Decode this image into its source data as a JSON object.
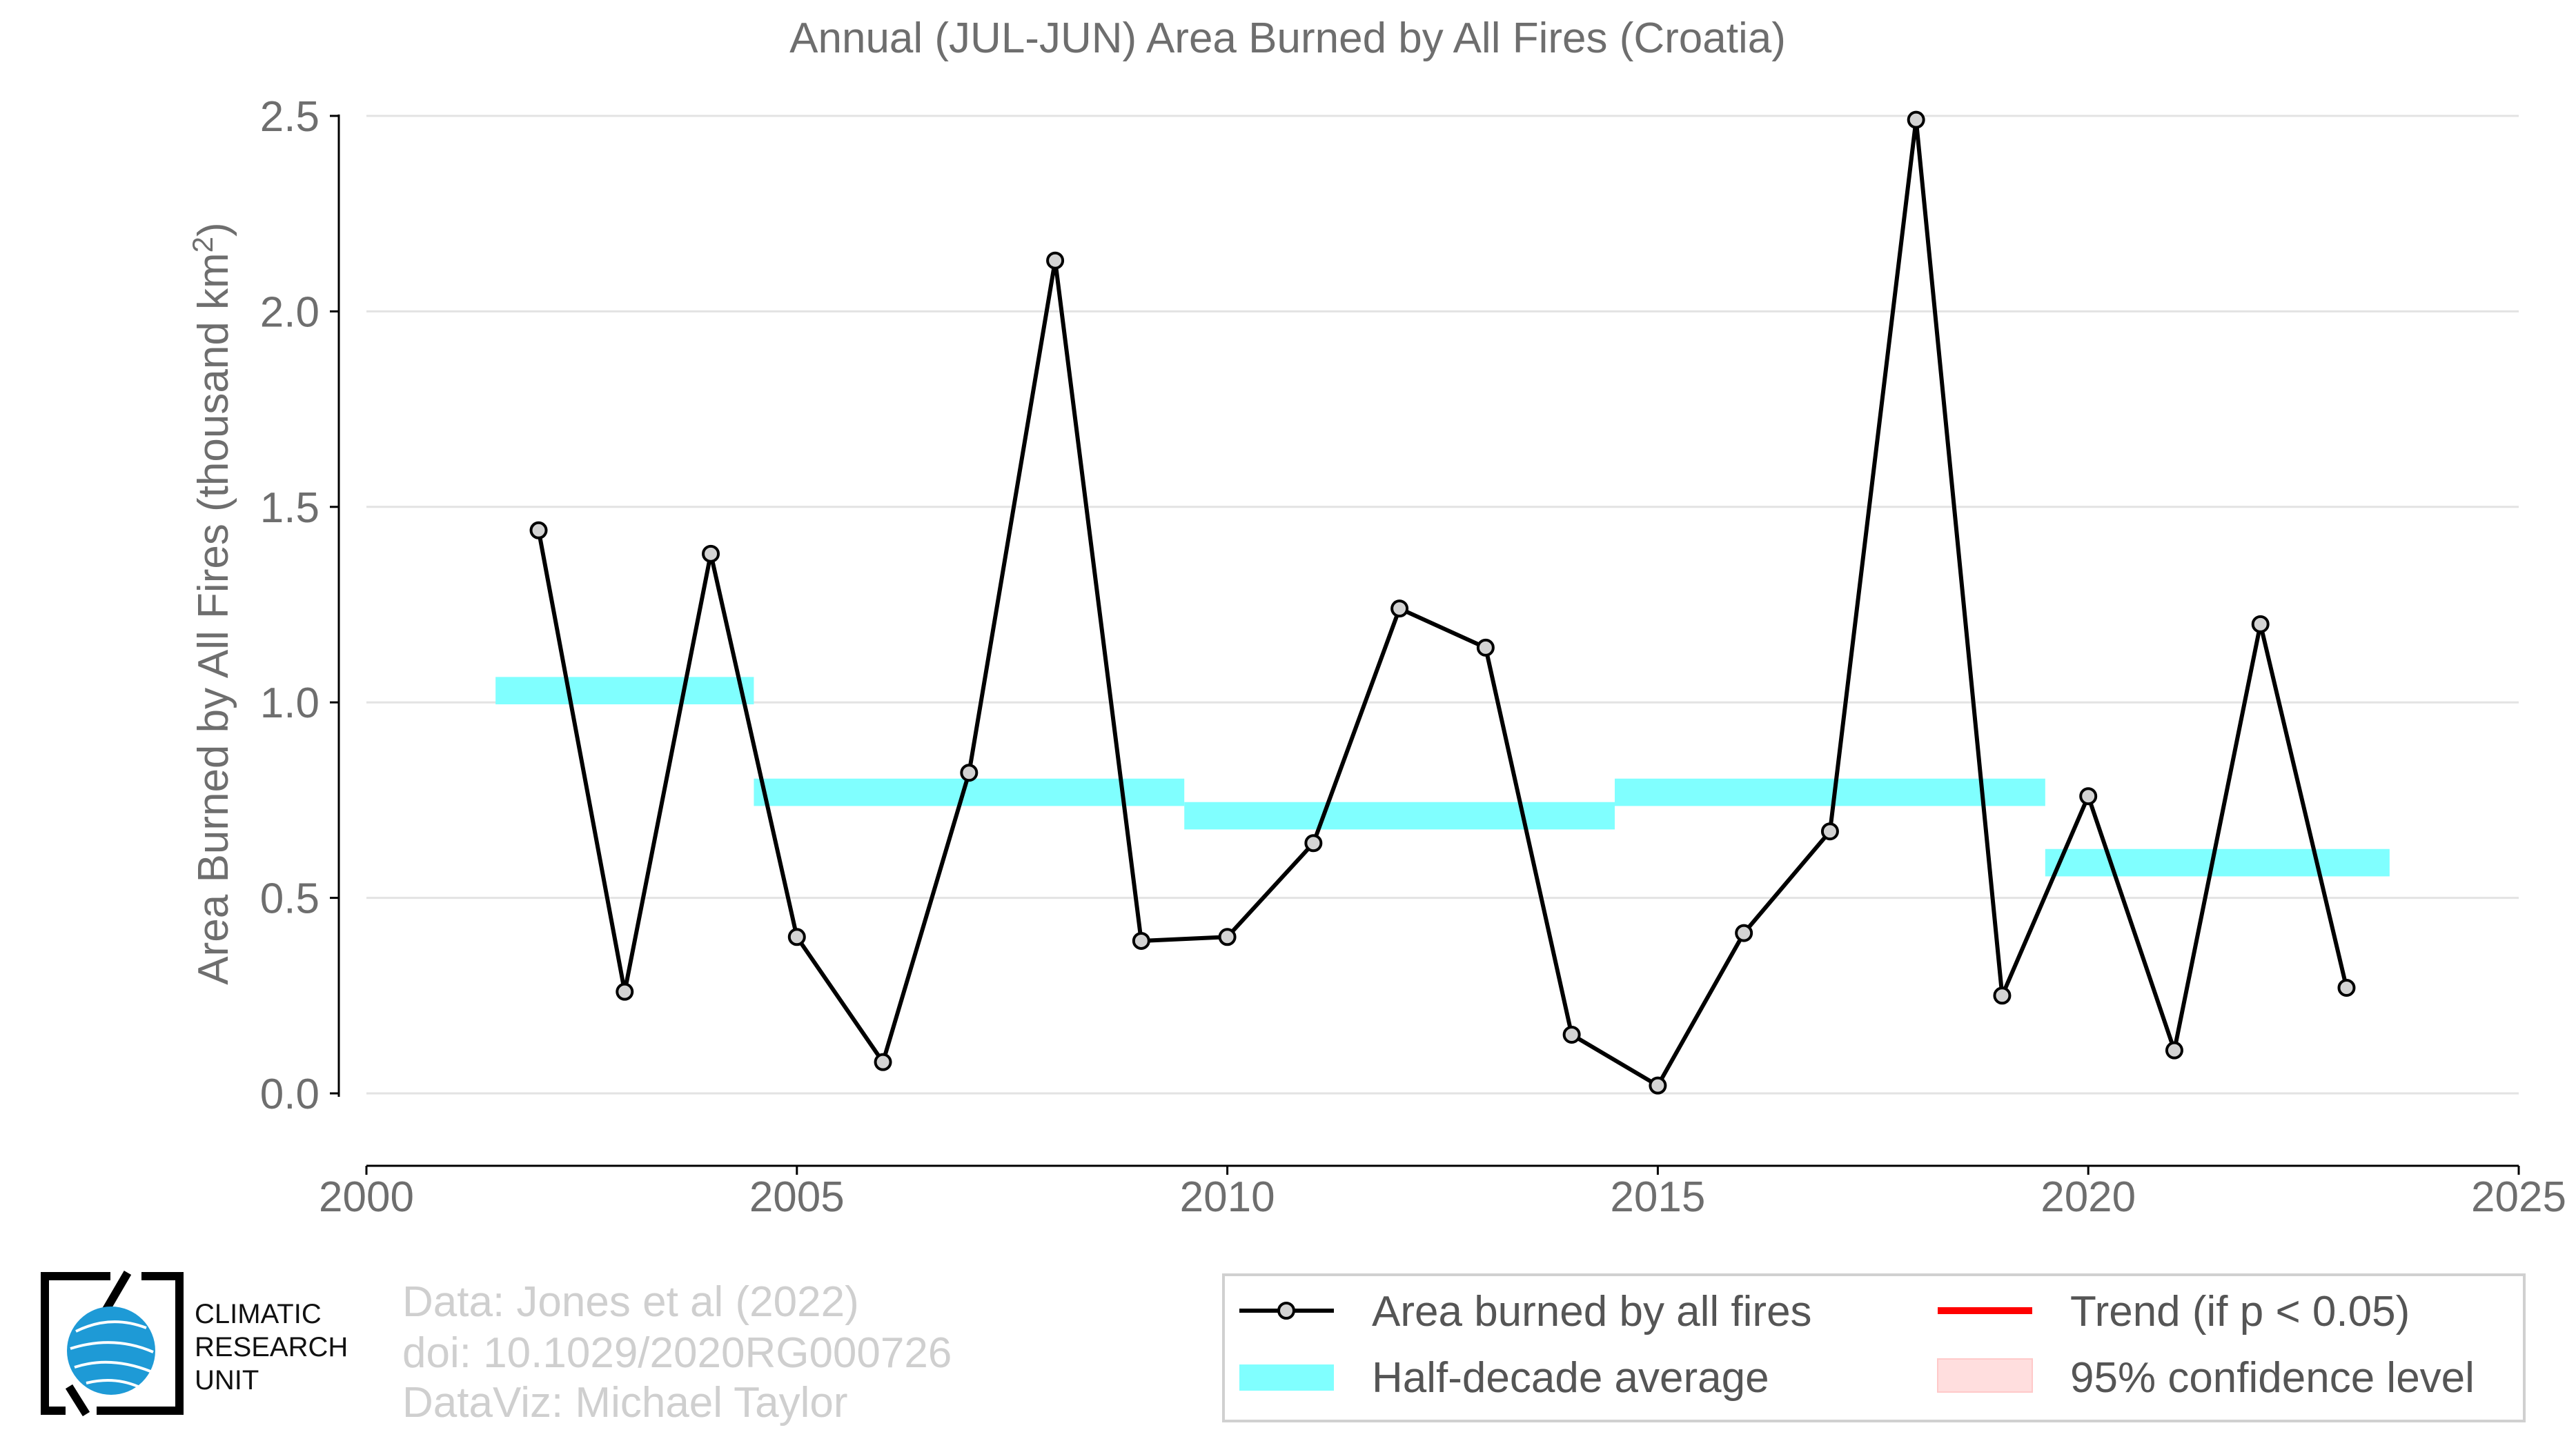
{
  "chart_data": {
    "type": "line",
    "title": "Annual (JUL-JUN) Area Burned by All Fires (Croatia)",
    "ylabel_main": "Area Burned by All Fires (thousand km",
    "ylabel_sup": "2",
    "ylabel_close": ")",
    "xlabel": "",
    "xlim": [
      2000,
      2025
    ],
    "ylim": [
      0.0,
      2.5
    ],
    "x_ticks": [
      2000,
      2005,
      2010,
      2015,
      2020,
      2025
    ],
    "x_tick_labels": [
      "2000",
      "2005",
      "2010",
      "2015",
      "2020",
      "2025"
    ],
    "y_ticks": [
      0.0,
      0.5,
      1.0,
      1.5,
      2.0,
      2.5
    ],
    "y_tick_labels": [
      "0.0",
      "0.5",
      "1.0",
      "1.5",
      "2.0",
      "2.5"
    ],
    "grid": "horizontal",
    "legend_position": "bottom-right",
    "series": [
      {
        "name": "Area burned by all fires",
        "color": "#000000",
        "marker_fill": "#d3d3d3",
        "x": [
          2002,
          2003,
          2004,
          2005,
          2006,
          2007,
          2008,
          2009,
          2010,
          2011,
          2012,
          2013,
          2014,
          2015,
          2016,
          2017,
          2018,
          2019,
          2020,
          2021,
          2022,
          2023
        ],
        "y": [
          1.44,
          0.26,
          1.38,
          0.4,
          0.08,
          0.82,
          2.13,
          0.39,
          0.4,
          0.64,
          1.24,
          1.14,
          0.15,
          0.02,
          0.41,
          0.67,
          2.49,
          0.25,
          0.76,
          0.11,
          1.2,
          0.27
        ]
      }
    ],
    "half_decade_average": {
      "name": "Half-decade average",
      "color": "#80ffff",
      "segments": [
        {
          "x_start": 2001.5,
          "x_end": 2004.5,
          "y": 1.03
        },
        {
          "x_start": 2004.5,
          "x_end": 2009.5,
          "y": 0.77
        },
        {
          "x_start": 2009.5,
          "x_end": 2014.5,
          "y": 0.71
        },
        {
          "x_start": 2014.5,
          "x_end": 2019.5,
          "y": 0.77
        },
        {
          "x_start": 2019.5,
          "x_end": 2023.5,
          "y": 0.59
        }
      ]
    },
    "legend": [
      {
        "label": "Area burned by all fires",
        "kind": "line-marker",
        "color": "#000000"
      },
      {
        "label": "Half-decade average",
        "kind": "band",
        "color": "#80ffff"
      },
      {
        "label": "Trend (if p < 0.05)",
        "kind": "line",
        "color": "#ff0000"
      },
      {
        "label": "95% confidence level",
        "kind": "patch",
        "color": "#ffdede"
      }
    ]
  },
  "credits": {
    "line1": "Data: Jones et al (2022)",
    "line2": "doi: 10.1029/2020RG000726",
    "line3": "DataViz: Michael Taylor"
  },
  "logo": {
    "line1": "CLIMATIC",
    "line2": "RESEARCH",
    "line3": "UNIT"
  }
}
